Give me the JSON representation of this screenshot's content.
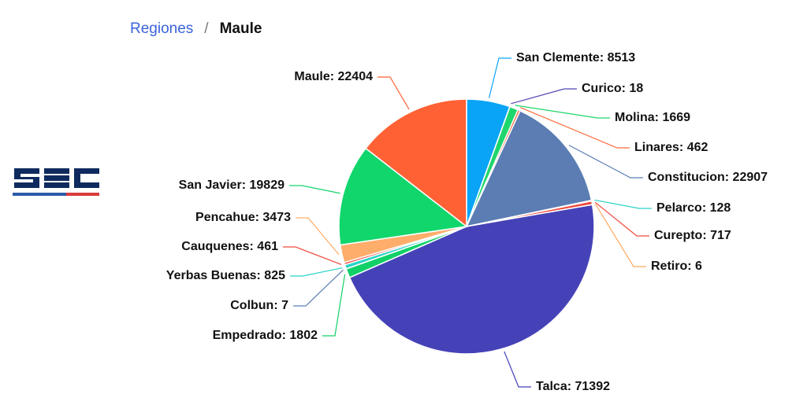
{
  "breadcrumb": {
    "parent": "Regiones",
    "separator": "/",
    "current": "Maule"
  },
  "logo": {
    "name": "sec-logo",
    "colors": [
      "#0f2a5e",
      "#2b5aa8",
      "#d93a3a"
    ]
  },
  "chart_data": {
    "type": "pie",
    "title": "",
    "start_at": "top",
    "direction": "clockwise",
    "slices": [
      {
        "name": "San Clemente",
        "value": 8513,
        "color": "#0aa4f6"
      },
      {
        "name": "Curico",
        "value": 18,
        "color": "#5046b6"
      },
      {
        "name": "Molina",
        "value": 1669,
        "color": "#1fd66c"
      },
      {
        "name": "Linares",
        "value": 462,
        "color": "#ff6b3b"
      },
      {
        "name": "Constitucion",
        "value": 22907,
        "color": "#5b7db4"
      },
      {
        "name": "Pelarco",
        "value": 128,
        "color": "#2ad3c7"
      },
      {
        "name": "Curepto",
        "value": 717,
        "color": "#ef4a3d"
      },
      {
        "name": "Retiro",
        "value": 6,
        "color": "#ffa65c"
      },
      {
        "name": "Talca",
        "value": 71392,
        "color": "#4542b8"
      },
      {
        "name": "Empedrado",
        "value": 1802,
        "color": "#11d068"
      },
      {
        "name": "Colbun",
        "value": 7,
        "color": "#5b7db4"
      },
      {
        "name": "Yerbas Buenas",
        "value": 825,
        "color": "#2ad3c7"
      },
      {
        "name": "Cauquenes",
        "value": 461,
        "color": "#ef4a3d"
      },
      {
        "name": "Pencahue",
        "value": 3473,
        "color": "#ffad6b"
      },
      {
        "name": "San Javier",
        "value": 19829,
        "color": "#11d66c"
      },
      {
        "name": "Maule",
        "value": 22404,
        "color": "#ff6135"
      }
    ]
  }
}
